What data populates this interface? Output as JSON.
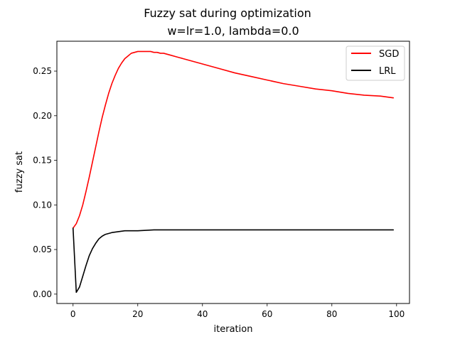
{
  "chart_data": {
    "type": "line",
    "title": "Fuzzy sat during optimization",
    "subtitle": "w=lr=1.0, lambda=0.0",
    "xlabel": "iteration",
    "ylabel": "fuzzy sat",
    "xlim": [
      -5,
      104
    ],
    "ylim": [
      -0.0105,
      0.2835
    ],
    "xticks": [
      0,
      20,
      40,
      60,
      80,
      100
    ],
    "xtick_labels": [
      "0",
      "20",
      "40",
      "60",
      "80",
      "100"
    ],
    "yticks": [
      0.0,
      0.05,
      0.1,
      0.15,
      0.2,
      0.25
    ],
    "ytick_labels": [
      "0.00",
      "0.05",
      "0.10",
      "0.15",
      "0.20",
      "0.25"
    ],
    "grid": false,
    "legend_position": "top-right",
    "series": [
      {
        "name": "SGD",
        "color": "#ff0000",
        "x": [
          0,
          1,
          2,
          3,
          4,
          5,
          6,
          7,
          8,
          9,
          10,
          11,
          12,
          13,
          14,
          15,
          16,
          17,
          18,
          19,
          20,
          21,
          22,
          23,
          24,
          25,
          26,
          27,
          28,
          30,
          32,
          34,
          36,
          38,
          40,
          45,
          50,
          55,
          60,
          65,
          70,
          75,
          80,
          85,
          90,
          95,
          99
        ],
        "y": [
          0.074,
          0.079,
          0.088,
          0.1,
          0.115,
          0.131,
          0.148,
          0.165,
          0.182,
          0.198,
          0.212,
          0.225,
          0.236,
          0.245,
          0.253,
          0.259,
          0.264,
          0.267,
          0.27,
          0.271,
          0.272,
          0.272,
          0.272,
          0.272,
          0.272,
          0.271,
          0.271,
          0.27,
          0.27,
          0.268,
          0.266,
          0.264,
          0.262,
          0.26,
          0.258,
          0.253,
          0.248,
          0.244,
          0.24,
          0.236,
          0.233,
          0.23,
          0.228,
          0.225,
          0.223,
          0.222,
          0.22
        ]
      },
      {
        "name": "LRL",
        "color": "#000000",
        "x": [
          0,
          1,
          2,
          3,
          4,
          5,
          6,
          7,
          8,
          9,
          10,
          12,
          14,
          16,
          18,
          20,
          25,
          30,
          40,
          50,
          60,
          70,
          80,
          90,
          99
        ],
        "y": [
          0.074,
          0.002,
          0.008,
          0.02,
          0.032,
          0.043,
          0.051,
          0.057,
          0.062,
          0.065,
          0.067,
          0.069,
          0.07,
          0.071,
          0.071,
          0.071,
          0.072,
          0.072,
          0.072,
          0.072,
          0.072,
          0.072,
          0.072,
          0.072,
          0.072
        ]
      }
    ]
  }
}
